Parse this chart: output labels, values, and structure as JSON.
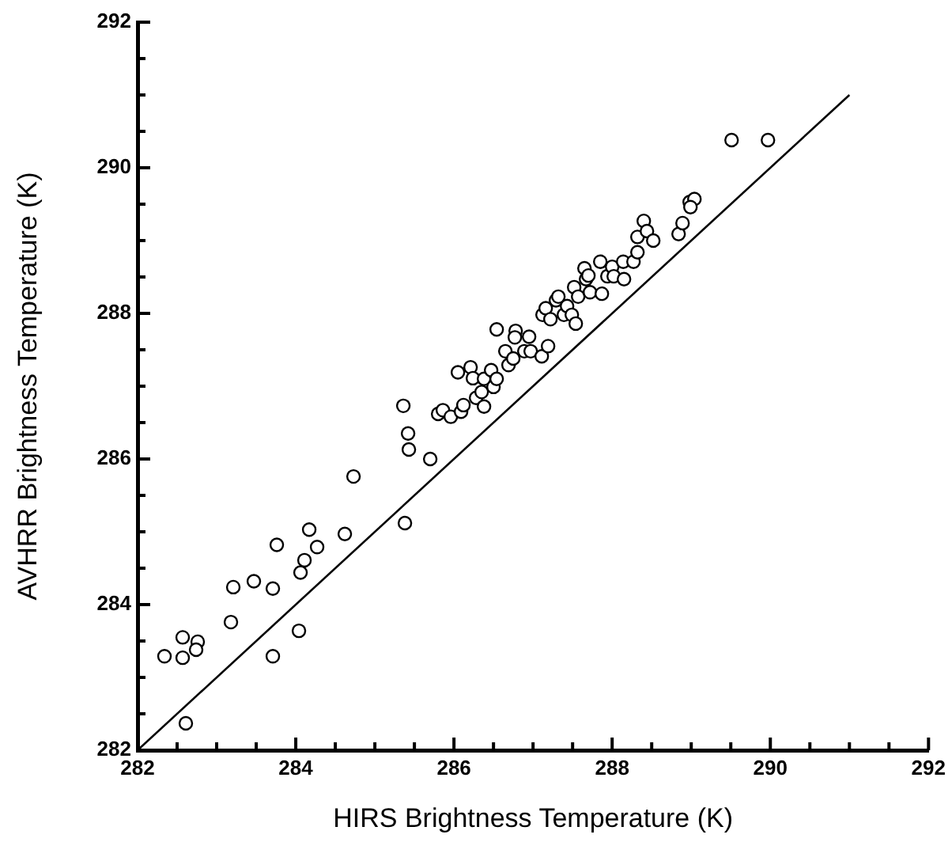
{
  "chart_data": {
    "type": "scatter",
    "xlabel": "HIRS Brightness Temperature (K)",
    "ylabel": "AVHRR Brightness Temperature (K)",
    "xlim": [
      282,
      292
    ],
    "ylim": [
      282,
      292
    ],
    "xticks": [
      282,
      {
        "value": 282.5,
        "label": null
      },
      {
        "value": 283,
        "label": null
      },
      {
        "value": 283.5,
        "label": null
      },
      284,
      {
        "value": 284.5,
        "label": null
      },
      {
        "value": 285,
        "label": null
      },
      {
        "value": 285.5,
        "label": null
      },
      286,
      {
        "value": 286.5,
        "label": null
      },
      {
        "value": 287,
        "label": null
      },
      {
        "value": 287.5,
        "label": null
      },
      288,
      {
        "value": 288.5,
        "label": null
      },
      {
        "value": 289,
        "label": null
      },
      {
        "value": 289.5,
        "label": null
      },
      290,
      {
        "value": 290.5,
        "label": null
      },
      {
        "value": 291,
        "label": null
      },
      {
        "value": 291.5,
        "label": null
      },
      292
    ],
    "yticks": [
      282,
      {
        "value": 282.5,
        "label": null
      },
      {
        "value": 283,
        "label": null
      },
      {
        "value": 283.5,
        "label": null
      },
      284,
      {
        "value": 284.5,
        "label": null
      },
      {
        "value": 285,
        "label": null
      },
      {
        "value": 285.5,
        "label": null
      },
      286,
      {
        "value": 286.5,
        "label": null
      },
      {
        "value": 287,
        "label": null
      },
      {
        "value": 287.5,
        "label": null
      },
      288,
      {
        "value": 288.5,
        "label": null
      },
      {
        "value": 289,
        "label": null
      },
      {
        "value": 289.5,
        "label": null
      },
      290,
      {
        "value": 290.5,
        "label": null
      },
      {
        "value": 291,
        "label": null
      },
      {
        "value": 291.5,
        "label": null
      },
      292
    ],
    "grid": false,
    "legend": false,
    "series": [
      {
        "color": "#000000",
        "marker": "circle",
        "x": [
          282.34,
          282.57,
          282.57,
          282.76,
          282.74,
          282.61,
          283.18,
          283.21,
          283.47,
          283.71,
          283.71,
          283.76,
          284.04,
          284.06,
          284.11,
          284.17,
          284.27,
          284.62,
          284.73,
          285.36,
          285.42,
          285.43,
          285.38,
          285.7,
          285.8,
          285.86,
          285.96,
          286.05,
          286.09,
          286.12,
          286.21,
          286.24,
          286.28,
          286.35,
          286.38,
          286.38,
          286.47,
          286.5,
          286.54,
          286.54,
          286.65,
          286.69,
          286.75,
          286.78,
          286.77,
          286.89,
          286.97,
          286.95,
          287.11,
          287.19,
          287.12,
          287.16,
          287.22,
          287.29,
          287.32,
          287.39,
          287.43,
          287.49,
          287.54,
          287.52,
          287.57,
          287.65,
          287.67,
          287.7,
          287.72,
          287.85,
          287.87,
          287.94,
          288.0,
          288.02,
          288.14,
          288.15,
          288.27,
          288.32,
          288.32,
          288.4,
          288.44,
          288.52,
          288.84,
          288.89,
          288.98,
          289.04,
          288.99,
          289.51,
          289.97
        ],
        "values": [
          283.29,
          283.55,
          283.27,
          283.49,
          283.38,
          282.37,
          283.76,
          284.24,
          284.32,
          284.22,
          283.29,
          284.82,
          283.64,
          284.44,
          284.61,
          285.03,
          284.79,
          284.97,
          285.76,
          286.73,
          286.35,
          286.13,
          285.12,
          286.0,
          286.62,
          286.67,
          286.58,
          287.19,
          286.65,
          286.74,
          287.26,
          287.11,
          286.84,
          286.92,
          286.72,
          287.1,
          287.22,
          286.99,
          287.1,
          287.78,
          287.48,
          287.29,
          287.38,
          287.76,
          287.67,
          287.48,
          287.48,
          287.68,
          287.41,
          287.55,
          287.98,
          288.07,
          287.92,
          288.18,
          288.23,
          287.98,
          288.1,
          287.98,
          287.86,
          288.36,
          288.23,
          288.62,
          288.47,
          288.52,
          288.29,
          288.71,
          288.27,
          288.51,
          288.64,
          288.51,
          288.71,
          288.47,
          288.71,
          288.84,
          289.05,
          289.27,
          289.13,
          289.0,
          289.09,
          289.24,
          289.53,
          289.57,
          289.46,
          290.38,
          290.38
        ]
      },
      {
        "type": "line",
        "color": "#000000",
        "line_style": "solid",
        "x": [
          282,
          291
        ],
        "values": [
          282,
          291
        ]
      }
    ]
  }
}
